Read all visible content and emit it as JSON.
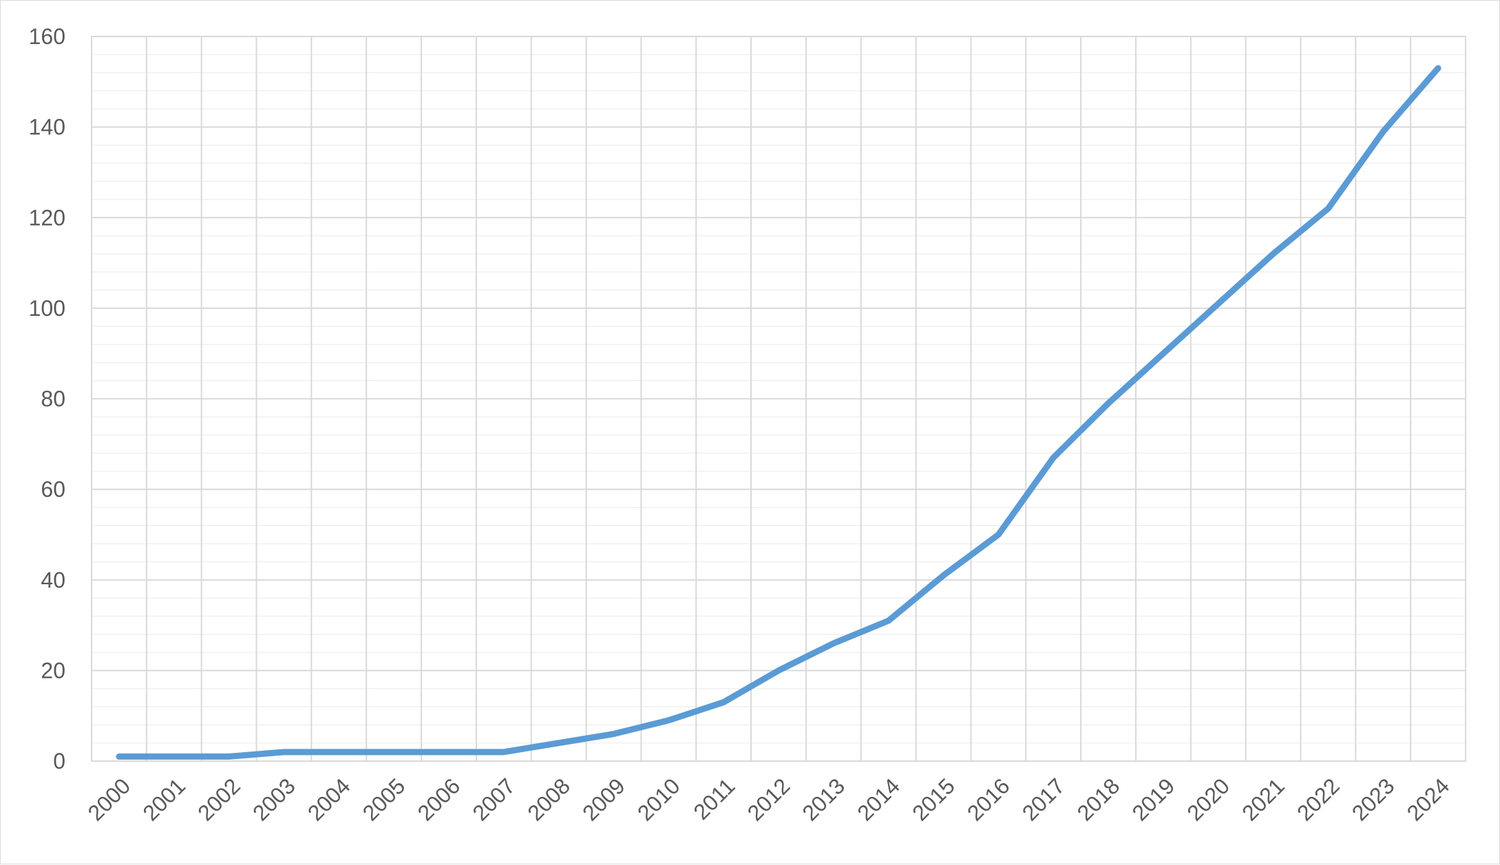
{
  "chart_data": {
    "type": "line",
    "title": "",
    "xlabel": "",
    "ylabel": "",
    "categories": [
      "2000",
      "2001",
      "2002",
      "2003",
      "2004",
      "2005",
      "2006",
      "2007",
      "2008",
      "2009",
      "2010",
      "2011",
      "2012",
      "2013",
      "2014",
      "2015",
      "2016",
      "2017",
      "2018",
      "2019",
      "2020",
      "2021",
      "2022",
      "2023",
      "2024"
    ],
    "series": [
      {
        "values": [
          1,
          1,
          1,
          2,
          2,
          2,
          2,
          2,
          4,
          6,
          9,
          13,
          20,
          26,
          31,
          41,
          50,
          67,
          79,
          90,
          101,
          112,
          122,
          139,
          153
        ],
        "color": "#5b9bd5"
      }
    ],
    "ylim": [
      0,
      160
    ],
    "yticks": [
      "0",
      "20",
      "40",
      "60",
      "80",
      "100",
      "120",
      "140",
      "160"
    ],
    "grid": {
      "major": true,
      "minor": true,
      "vertical": true
    },
    "legend": "none"
  }
}
